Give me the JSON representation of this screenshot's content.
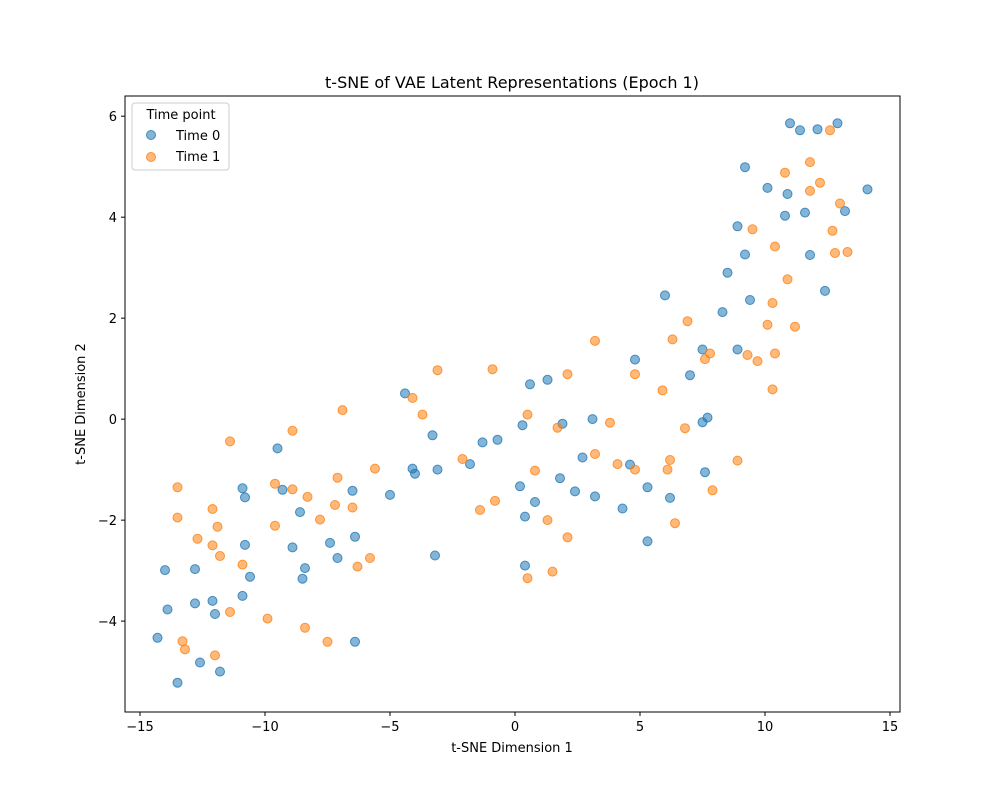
{
  "chart_data": {
    "type": "scatter",
    "title": "t-SNE of VAE Latent Representations (Epoch 1)",
    "xlabel": "t-SNE Dimension 1",
    "ylabel": "t-SNE Dimension 2",
    "xlim": [
      -15.6,
      15.4
    ],
    "ylim": [
      -5.8,
      6.4
    ],
    "xticks": [
      -15,
      -10,
      -5,
      0,
      5,
      10,
      15
    ],
    "yticks": [
      -4,
      -2,
      0,
      2,
      4,
      6
    ],
    "xtick_labels": [
      "−15",
      "−10",
      "−5",
      "0",
      "5",
      "10",
      "15"
    ],
    "ytick_labels": [
      "−4",
      "−2",
      "0",
      "2",
      "4",
      "6"
    ],
    "grid": false,
    "legend": {
      "title": "Time point",
      "placement": "top-left"
    },
    "series": [
      {
        "name": "Time 0",
        "color": "#1f77b4",
        "points": [
          [
            -14.3,
            -4.33
          ],
          [
            -13.9,
            -3.77
          ],
          [
            -14.0,
            -2.99
          ],
          [
            -13.5,
            -5.22
          ],
          [
            -12.8,
            -2.97
          ],
          [
            -12.8,
            -3.65
          ],
          [
            -12.6,
            -4.82
          ],
          [
            -12.1,
            -3.6
          ],
          [
            -12.0,
            -3.86
          ],
          [
            -11.8,
            -5.0
          ],
          [
            -10.9,
            -1.37
          ],
          [
            -10.8,
            -1.55
          ],
          [
            -10.8,
            -2.49
          ],
          [
            -10.6,
            -3.12
          ],
          [
            -10.9,
            -3.5
          ],
          [
            -9.5,
            -0.58
          ],
          [
            -9.3,
            -1.4
          ],
          [
            -8.9,
            -2.54
          ],
          [
            -8.6,
            -1.84
          ],
          [
            -8.5,
            -3.16
          ],
          [
            -8.4,
            -2.95
          ],
          [
            -7.4,
            -2.45
          ],
          [
            -7.1,
            -2.75
          ],
          [
            -6.5,
            -1.42
          ],
          [
            -6.4,
            -2.33
          ],
          [
            -6.4,
            -4.41
          ],
          [
            -5.0,
            -1.5
          ],
          [
            -4.4,
            0.51
          ],
          [
            -4.1,
            -0.98
          ],
          [
            -4.0,
            -1.08
          ],
          [
            -3.3,
            -0.32
          ],
          [
            -3.1,
            -1.0
          ],
          [
            -3.2,
            -2.7
          ],
          [
            -1.8,
            -0.89
          ],
          [
            -1.3,
            -0.46
          ],
          [
            -0.7,
            -0.41
          ],
          [
            0.2,
            -1.33
          ],
          [
            0.3,
            -0.12
          ],
          [
            0.6,
            0.69
          ],
          [
            0.4,
            -1.93
          ],
          [
            0.4,
            -2.9
          ],
          [
            0.8,
            -1.64
          ],
          [
            1.3,
            0.78
          ],
          [
            1.8,
            -1.17
          ],
          [
            1.9,
            -0.09
          ],
          [
            2.4,
            -1.43
          ],
          [
            2.7,
            -0.76
          ],
          [
            3.1,
            0.0
          ],
          [
            3.2,
            -1.53
          ],
          [
            4.3,
            -1.77
          ],
          [
            4.6,
            -0.9
          ],
          [
            4.8,
            1.18
          ],
          [
            5.3,
            -1.35
          ],
          [
            5.3,
            -2.42
          ],
          [
            6.0,
            2.45
          ],
          [
            6.2,
            -1.56
          ],
          [
            7.0,
            0.87
          ],
          [
            7.5,
            -0.06
          ],
          [
            7.5,
            1.38
          ],
          [
            7.6,
            -1.05
          ],
          [
            7.7,
            0.03
          ],
          [
            8.3,
            2.12
          ],
          [
            8.5,
            2.9
          ],
          [
            8.9,
            3.82
          ],
          [
            8.9,
            1.38
          ],
          [
            9.2,
            3.26
          ],
          [
            9.2,
            4.99
          ],
          [
            9.4,
            2.36
          ],
          [
            10.1,
            4.58
          ],
          [
            10.8,
            4.03
          ],
          [
            10.9,
            4.46
          ],
          [
            11.0,
            5.86
          ],
          [
            11.4,
            5.72
          ],
          [
            11.6,
            4.09
          ],
          [
            11.8,
            3.25
          ],
          [
            12.1,
            5.74
          ],
          [
            12.4,
            2.54
          ],
          [
            12.9,
            5.86
          ],
          [
            13.2,
            4.12
          ],
          [
            14.1,
            4.55
          ]
        ]
      },
      {
        "name": "Time 1",
        "color": "#ff7f0e",
        "points": [
          [
            -13.5,
            -1.35
          ],
          [
            -13.5,
            -1.95
          ],
          [
            -13.3,
            -4.4
          ],
          [
            -13.2,
            -4.56
          ],
          [
            -12.7,
            -2.37
          ],
          [
            -12.1,
            -1.78
          ],
          [
            -12.1,
            -2.5
          ],
          [
            -11.9,
            -2.13
          ],
          [
            -11.8,
            -2.71
          ],
          [
            -12.0,
            -4.68
          ],
          [
            -11.4,
            -0.44
          ],
          [
            -11.4,
            -3.82
          ],
          [
            -10.9,
            -2.88
          ],
          [
            -9.9,
            -3.95
          ],
          [
            -9.6,
            -1.28
          ],
          [
            -9.6,
            -2.11
          ],
          [
            -8.9,
            -0.23
          ],
          [
            -8.9,
            -1.39
          ],
          [
            -8.3,
            -1.54
          ],
          [
            -8.4,
            -4.13
          ],
          [
            -7.8,
            -1.99
          ],
          [
            -7.5,
            -4.41
          ],
          [
            -7.2,
            -1.7
          ],
          [
            -7.1,
            -1.16
          ],
          [
            -6.9,
            0.18
          ],
          [
            -6.5,
            -1.75
          ],
          [
            -6.3,
            -2.92
          ],
          [
            -5.8,
            -2.75
          ],
          [
            -5.6,
            -0.98
          ],
          [
            -4.1,
            0.42
          ],
          [
            -3.7,
            0.09
          ],
          [
            -3.1,
            0.97
          ],
          [
            -2.1,
            -0.79
          ],
          [
            -1.4,
            -1.8
          ],
          [
            -0.9,
            0.99
          ],
          [
            -0.8,
            -1.62
          ],
          [
            0.5,
            0.09
          ],
          [
            0.5,
            -3.15
          ],
          [
            0.8,
            -1.02
          ],
          [
            1.3,
            -2.0
          ],
          [
            1.5,
            -3.02
          ],
          [
            1.7,
            -0.17
          ],
          [
            2.1,
            0.89
          ],
          [
            2.1,
            -2.34
          ],
          [
            3.2,
            1.55
          ],
          [
            3.2,
            -0.69
          ],
          [
            3.8,
            -0.07
          ],
          [
            4.1,
            -0.89
          ],
          [
            4.8,
            0.89
          ],
          [
            4.8,
            -1.0
          ],
          [
            5.9,
            0.57
          ],
          [
            6.1,
            -1.0
          ],
          [
            6.2,
            -0.81
          ],
          [
            6.3,
            1.58
          ],
          [
            6.4,
            -2.06
          ],
          [
            6.8,
            -0.18
          ],
          [
            6.9,
            1.94
          ],
          [
            7.6,
            1.19
          ],
          [
            7.8,
            1.3
          ],
          [
            7.9,
            -1.41
          ],
          [
            8.9,
            -0.82
          ],
          [
            9.3,
            1.27
          ],
          [
            9.5,
            3.76
          ],
          [
            9.7,
            1.15
          ],
          [
            10.1,
            1.87
          ],
          [
            10.3,
            0.59
          ],
          [
            10.3,
            2.3
          ],
          [
            10.4,
            1.3
          ],
          [
            10.4,
            3.42
          ],
          [
            10.8,
            4.88
          ],
          [
            10.9,
            2.77
          ],
          [
            11.2,
            1.83
          ],
          [
            11.8,
            4.52
          ],
          [
            11.8,
            5.09
          ],
          [
            12.2,
            4.68
          ],
          [
            12.6,
            5.72
          ],
          [
            12.7,
            3.73
          ],
          [
            12.8,
            3.29
          ],
          [
            13.0,
            4.27
          ],
          [
            13.3,
            3.31
          ]
        ]
      }
    ]
  }
}
